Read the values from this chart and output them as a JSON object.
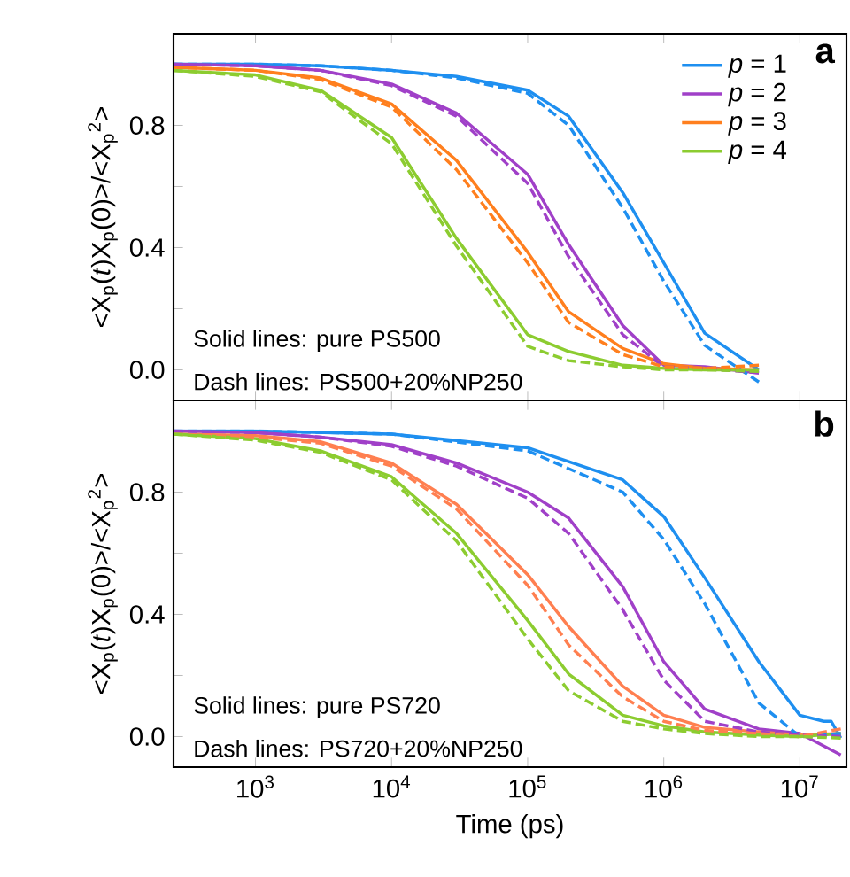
{
  "chart_data": [
    {
      "type": "line",
      "title": "a",
      "ylabel": "<X$_{p}$(*t*)X$_{p}$(0)>/<X$_{p}$$^{2}$>",
      "log": "x",
      "tick_labels": "y",
      "legend": "top right",
      "xlim": [
        250,
        22000000
      ],
      "ylim": [
        -0.1,
        1.1
      ],
      "xticks": [
        {
          "value": 1000,
          "label": null
        },
        {
          "value": 10000,
          "label": null
        },
        {
          "value": 100000,
          "label": null
        },
        {
          "value": 1000000,
          "label": null
        },
        {
          "value": 10000000,
          "label": null
        }
      ],
      "yticks": [
        {
          "value": 0,
          "label": "0.0"
        },
        {
          "value": 0.2,
          "label": null
        },
        {
          "value": 0.4,
          "label": "0.4"
        },
        {
          "value": 0.6,
          "label": null
        },
        {
          "value": 0.8,
          "label": "0.8"
        },
        {
          "value": 1.0,
          "label": null
        }
      ],
      "annotations": [
        "Solid lines: pure PS500",
        "Dash lines: PS500+20%NP250"
      ],
      "series": [
        {
          "name": "*p* = 1",
          "color": "#1e8ff0",
          "line_style": "solid",
          "x": [
            250,
            1000,
            3000,
            10000,
            30000,
            100000,
            200000,
            500000,
            1000000,
            2000000,
            5000000
          ],
          "values": [
            1.0,
            1.0,
            0.995,
            0.98,
            0.96,
            0.915,
            0.83,
            0.58,
            0.35,
            0.12,
            0.0
          ]
        },
        {
          "name": "*p* = 2",
          "color": "#a040c8",
          "line_style": "solid",
          "x": [
            250,
            1000,
            3000,
            10000,
            30000,
            100000,
            200000,
            500000,
            1000000,
            2000000,
            5000000
          ],
          "values": [
            1.0,
            0.995,
            0.98,
            0.935,
            0.84,
            0.64,
            0.41,
            0.145,
            0.015,
            0.01,
            -0.01
          ]
        },
        {
          "name": "*p* = 3",
          "color": "#ff7f1e",
          "line_style": "solid",
          "x": [
            250,
            1000,
            3000,
            10000,
            30000,
            100000,
            200000,
            500000,
            1000000,
            2000000,
            5000000
          ],
          "values": [
            0.99,
            0.98,
            0.955,
            0.87,
            0.685,
            0.385,
            0.19,
            0.07,
            0.02,
            0.005,
            0.0
          ]
        },
        {
          "name": "*p* = 4",
          "color": "#8ccc30",
          "line_style": "solid",
          "x": [
            250,
            1000,
            3000,
            10000,
            30000,
            100000,
            200000,
            500000,
            1000000,
            2000000,
            5000000
          ],
          "values": [
            0.98,
            0.965,
            0.915,
            0.76,
            0.43,
            0.115,
            0.06,
            0.015,
            0.005,
            0.0,
            0.0
          ]
        },
        {
          "color": "#1e8ff0",
          "line_style": "dashed",
          "x": [
            250,
            1000,
            3000,
            10000,
            30000,
            100000,
            200000,
            500000,
            1000000,
            2000000,
            5000000
          ],
          "values": [
            1.0,
            1.0,
            0.995,
            0.98,
            0.955,
            0.905,
            0.8,
            0.53,
            0.29,
            0.08,
            -0.04
          ]
        },
        {
          "color": "#a040c8",
          "line_style": "dashed",
          "x": [
            250,
            1000,
            3000,
            10000,
            30000,
            100000,
            200000,
            500000,
            1000000,
            2000000,
            5000000
          ],
          "values": [
            1.0,
            0.995,
            0.98,
            0.93,
            0.83,
            0.61,
            0.37,
            0.115,
            0.01,
            0.005,
            -0.01
          ]
        },
        {
          "color": "#ff7f1e",
          "line_style": "dashed",
          "x": [
            250,
            1000,
            3000,
            10000,
            30000,
            100000,
            200000,
            500000,
            1000000,
            2000000,
            5000000
          ],
          "values": [
            0.99,
            0.98,
            0.95,
            0.86,
            0.655,
            0.35,
            0.155,
            0.05,
            0.01,
            0.005,
            0.015
          ]
        },
        {
          "color": "#8ccc30",
          "line_style": "dashed",
          "x": [
            250,
            1000,
            3000,
            10000,
            30000,
            100000,
            200000,
            500000,
            1000000,
            2000000,
            5000000
          ],
          "values": [
            0.98,
            0.96,
            0.91,
            0.74,
            0.405,
            0.077,
            0.03,
            0.01,
            0.0,
            0.0,
            -0.005
          ]
        }
      ]
    },
    {
      "type": "line",
      "title": "b",
      "xlabel": "Time (ps)",
      "ylabel": "<X$_{p}$(*t*)X$_{p}$(0)>/<X$_{p}$$^{2}$>",
      "log": "x",
      "xlim": [
        250,
        22000000
      ],
      "ylim": [
        -0.1,
        1.1
      ],
      "xticks": [
        {
          "value": 1000,
          "label": "10$^{3}$"
        },
        {
          "value": 10000,
          "label": "10$^{4}$"
        },
        {
          "value": 100000,
          "label": "10$^{5}$"
        },
        {
          "value": 1000000,
          "label": "10$^{6}$"
        },
        {
          "value": 10000000,
          "label": "10$^{7}$"
        }
      ],
      "yticks": [
        {
          "value": 0,
          "label": "0.0"
        },
        {
          "value": 0.2,
          "label": null
        },
        {
          "value": 0.4,
          "label": "0.4"
        },
        {
          "value": 0.6,
          "label": null
        },
        {
          "value": 0.8,
          "label": "0.8"
        },
        {
          "value": 1.0,
          "label": null
        }
      ],
      "annotations": [
        "Solid lines: pure PS720",
        "Dash lines: PS720+20%NP250"
      ],
      "series": [
        {
          "color": "#1e8ff0",
          "line_style": "solid",
          "x": [
            250,
            1000,
            10000,
            100000,
            500000,
            1000000,
            2000000,
            5000000,
            10000000,
            15000000,
            17000000,
            20000000
          ],
          "values": [
            1.0,
            1.0,
            0.99,
            0.945,
            0.84,
            0.72,
            0.52,
            0.245,
            0.07,
            0.05,
            0.05,
            -0.005
          ]
        },
        {
          "color": "#a040c8",
          "line_style": "solid",
          "x": [
            250,
            1000,
            3000,
            10000,
            30000,
            100000,
            200000,
            500000,
            1000000,
            2000000,
            5000000,
            10000000,
            20000000
          ],
          "values": [
            1.0,
            0.995,
            0.98,
            0.955,
            0.895,
            0.8,
            0.715,
            0.49,
            0.245,
            0.09,
            0.025,
            0.01,
            -0.06
          ]
        },
        {
          "color": "#ff7f50",
          "line_style": "solid",
          "x": [
            250,
            1000,
            3000,
            10000,
            30000,
            100000,
            200000,
            500000,
            1000000,
            2000000,
            5000000,
            10000000,
            20000000
          ],
          "values": [
            0.99,
            0.985,
            0.965,
            0.895,
            0.76,
            0.53,
            0.36,
            0.165,
            0.07,
            0.03,
            0.015,
            0.005,
            0.01
          ]
        },
        {
          "color": "#8ccc30",
          "line_style": "solid",
          "x": [
            250,
            1000,
            3000,
            10000,
            30000,
            100000,
            200000,
            500000,
            1000000,
            2000000,
            5000000,
            10000000,
            20000000
          ],
          "values": [
            0.99,
            0.975,
            0.935,
            0.85,
            0.665,
            0.38,
            0.205,
            0.07,
            0.035,
            0.015,
            0.005,
            0.0,
            0.01
          ]
        },
        {
          "color": "#1e8ff0",
          "line_style": "dashed",
          "x": [
            250,
            1000,
            10000,
            100000,
            500000,
            1000000,
            2000000,
            5000000,
            10000000,
            20000000
          ],
          "values": [
            1.0,
            1.0,
            0.99,
            0.935,
            0.8,
            0.645,
            0.435,
            0.11,
            0.0,
            0.01
          ]
        },
        {
          "color": "#a040c8",
          "line_style": "dashed",
          "x": [
            250,
            1000,
            3000,
            10000,
            30000,
            100000,
            200000,
            500000,
            1000000,
            2000000,
            5000000,
            10000000,
            20000000
          ],
          "values": [
            1.0,
            0.995,
            0.98,
            0.95,
            0.885,
            0.78,
            0.665,
            0.415,
            0.185,
            0.05,
            0.015,
            0.005,
            0.0
          ]
        },
        {
          "color": "#ff7f50",
          "line_style": "dashed",
          "x": [
            250,
            1000,
            3000,
            10000,
            30000,
            100000,
            200000,
            500000,
            1000000,
            2000000,
            5000000,
            10000000,
            20000000
          ],
          "values": [
            0.99,
            0.98,
            0.96,
            0.885,
            0.745,
            0.495,
            0.3,
            0.13,
            0.05,
            0.02,
            0.01,
            0.0,
            0.025
          ]
        },
        {
          "color": "#8ccc30",
          "line_style": "dashed",
          "x": [
            250,
            1000,
            3000,
            10000,
            30000,
            100000,
            200000,
            500000,
            1000000,
            2000000,
            5000000,
            10000000,
            20000000
          ],
          "values": [
            0.99,
            0.97,
            0.93,
            0.84,
            0.64,
            0.32,
            0.15,
            0.05,
            0.025,
            0.01,
            0.0,
            0.0,
            -0.005
          ]
        }
      ]
    }
  ]
}
